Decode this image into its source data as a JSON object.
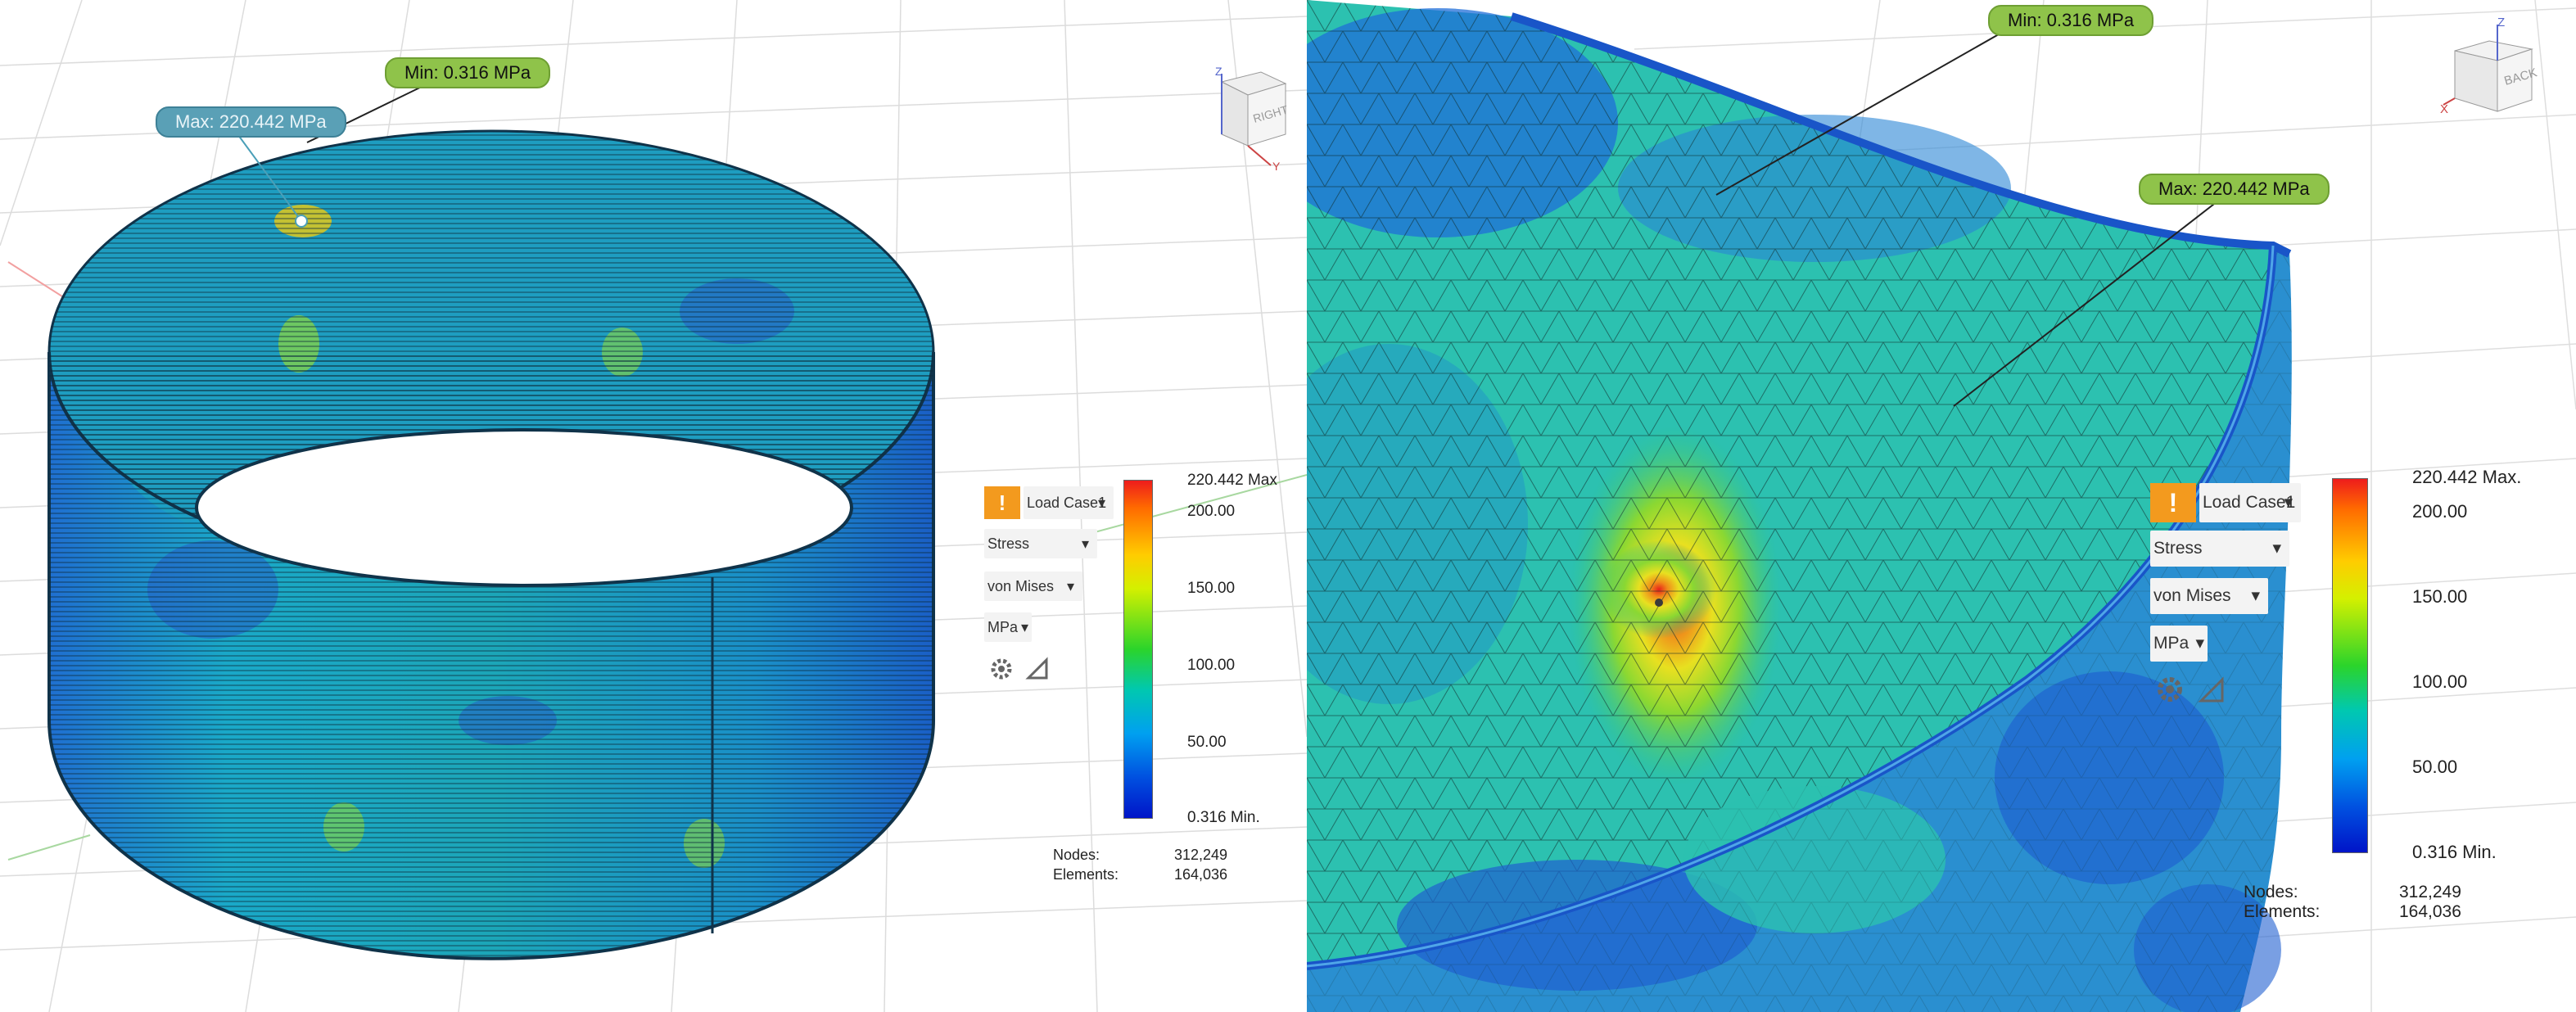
{
  "left": {
    "callouts": {
      "min": "Min: 0.316 MPa",
      "max": "Max: 220.442 MPa"
    },
    "toolbar": {
      "load_case": "Load Case1",
      "result_type": "Stress",
      "component": "von Mises",
      "units": "MPa"
    },
    "legend": {
      "max_label": "220.442 Max",
      "ticks": [
        "200.00",
        "150.00",
        "100.00",
        "50.00"
      ],
      "min_label": "0.316 Min."
    },
    "stats": {
      "nodes_label": "Nodes:",
      "nodes_value": "312,249",
      "elements_label": "Elements:",
      "elements_value": "164,036"
    },
    "viewcube": {
      "face": "RIGHT",
      "axis_z": "Z",
      "axis_y": "Y"
    }
  },
  "right": {
    "callouts": {
      "min": "Min: 0.316 MPa",
      "max": "Max: 220.442 MPa"
    },
    "toolbar": {
      "load_case": "Load Case1",
      "result_type": "Stress",
      "component": "von Mises",
      "units": "MPa"
    },
    "legend": {
      "max_label": "220.442 Max.",
      "ticks": [
        "200.00",
        "150.00",
        "100.00",
        "50.00"
      ],
      "min_label": "0.316 Min."
    },
    "stats": {
      "nodes_label": "Nodes:",
      "nodes_value": "312,249",
      "elements_label": "Elements:",
      "elements_value": "164,036"
    },
    "viewcube": {
      "face": "BACK",
      "axis_z": "Z",
      "axis_x": "X"
    }
  },
  "warning_glyph": "!",
  "dropdown_arrow": "▾",
  "colors": {
    "warning": "#f39a1e",
    "callout_green": "#8fc34a",
    "callout_blue": "#5aa0b6"
  },
  "icons": [
    "warning-icon",
    "settings-gear-icon",
    "probe-icon",
    "view-cube-icon"
  ]
}
